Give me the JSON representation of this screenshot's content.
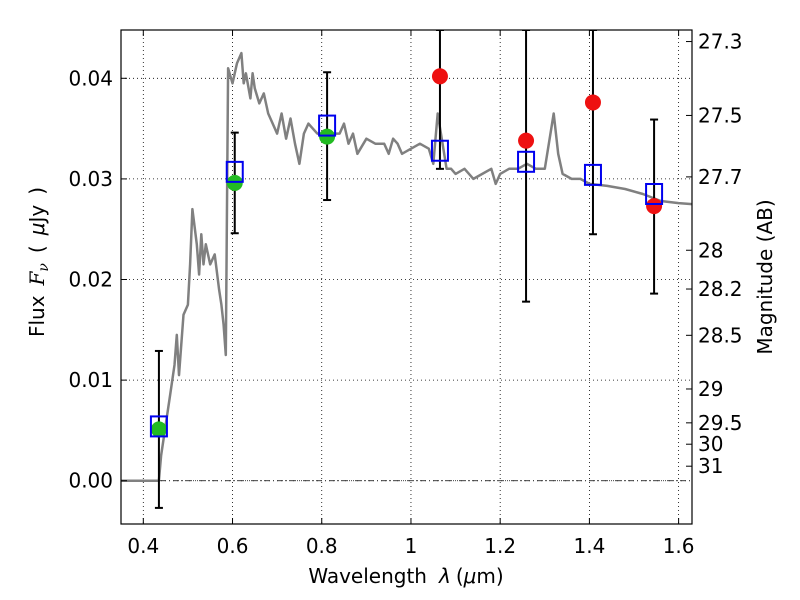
{
  "chart_data": {
    "type": "scatter",
    "xlabel_parts": [
      "Wavelength",
      "λ",
      "(",
      "μ",
      "m)"
    ],
    "ylabel_parts": [
      "Flux",
      "F",
      "ν",
      "(",
      "μ",
      "Jy",
      ")"
    ],
    "y2label": "Magnitude (AB)",
    "xlim": [
      0.35,
      1.63
    ],
    "ylim": [
      -0.0043,
      0.0448
    ],
    "x_ticks": [
      0.4,
      0.6,
      0.8,
      1.0,
      1.2,
      1.4,
      1.6
    ],
    "x_tick_labels": [
      "0.4",
      "0.6",
      "0.8",
      "1",
      "1.2",
      "1.4",
      "1.6"
    ],
    "y_ticks": [
      0.0,
      0.01,
      0.02,
      0.03,
      0.04
    ],
    "y_tick_labels": [
      "0.00",
      "0.01",
      "0.02",
      "0.03",
      "0.04"
    ],
    "y2_ticks": [
      27.3,
      27.5,
      27.7,
      28,
      28.2,
      28.5,
      29,
      29.5,
      30,
      31
    ],
    "y2_tick_labels": [
      "27.3",
      "27.5",
      "27.7",
      "28",
      "28.2",
      "28.5",
      "29",
      "29.5",
      "30",
      "31"
    ],
    "grid": true,
    "zero_line": true,
    "colors": {
      "model": "#808080",
      "green": "#22bb22",
      "red": "#ee1111",
      "box": "#0000ee",
      "errorbar": "#000000"
    },
    "series": [
      {
        "kind": "model_sed_line",
        "x": [
          0.35,
          0.425,
          0.435,
          0.44,
          0.45,
          0.46,
          0.47,
          0.475,
          0.48,
          0.49,
          0.5,
          0.505,
          0.51,
          0.52,
          0.525,
          0.53,
          0.535,
          0.54,
          0.55,
          0.56,
          0.57,
          0.575,
          0.58,
          0.585,
          0.59,
          0.6,
          0.61,
          0.62,
          0.625,
          0.63,
          0.64,
          0.645,
          0.65,
          0.66,
          0.67,
          0.68,
          0.69,
          0.7,
          0.71,
          0.72,
          0.73,
          0.74,
          0.75,
          0.76,
          0.77,
          0.78,
          0.79,
          0.8,
          0.82,
          0.84,
          0.85,
          0.86,
          0.87,
          0.88,
          0.9,
          0.92,
          0.94,
          0.95,
          0.96,
          0.97,
          0.98,
          1.0,
          1.02,
          1.04,
          1.05,
          1.06,
          1.08,
          1.09,
          1.1,
          1.12,
          1.14,
          1.16,
          1.18,
          1.19,
          1.2,
          1.22,
          1.24,
          1.26,
          1.28,
          1.3,
          1.32,
          1.33,
          1.34,
          1.36,
          1.38,
          1.4,
          1.44,
          1.48,
          1.52,
          1.56,
          1.6,
          1.63
        ],
        "y": [
          0.0,
          0.0,
          0.0,
          0.0025,
          0.0055,
          0.0085,
          0.0115,
          0.0145,
          0.0105,
          0.0165,
          0.0175,
          0.0215,
          0.027,
          0.0235,
          0.0205,
          0.0245,
          0.0215,
          0.0235,
          0.0215,
          0.0225,
          0.019,
          0.0175,
          0.0155,
          0.0125,
          0.041,
          0.0395,
          0.0415,
          0.0425,
          0.0395,
          0.0405,
          0.038,
          0.0405,
          0.039,
          0.0375,
          0.0385,
          0.0365,
          0.0355,
          0.0345,
          0.0365,
          0.034,
          0.036,
          0.0335,
          0.0315,
          0.0345,
          0.0355,
          0.035,
          0.0345,
          0.0345,
          0.0345,
          0.0345,
          0.0355,
          0.0335,
          0.0345,
          0.0325,
          0.034,
          0.0335,
          0.0335,
          0.0325,
          0.034,
          0.0335,
          0.0325,
          0.033,
          0.0335,
          0.033,
          0.0315,
          0.0365,
          0.031,
          0.031,
          0.0305,
          0.031,
          0.03,
          0.0305,
          0.031,
          0.0295,
          0.0305,
          0.031,
          0.031,
          0.0315,
          0.031,
          0.031,
          0.0365,
          0.0325,
          0.0305,
          0.03,
          0.03,
          0.0295,
          0.0293,
          0.029,
          0.0285,
          0.0278,
          0.0276,
          0.0275
        ]
      },
      {
        "kind": "green_points",
        "x": [
          0.435,
          0.605,
          0.812
        ],
        "y": [
          0.0051,
          0.0296,
          0.0342
        ]
      },
      {
        "kind": "red_points",
        "x": [
          1.065,
          1.258,
          1.408,
          1.545
        ],
        "y": [
          0.0402,
          0.0338,
          0.0376,
          0.0273
        ]
      },
      {
        "kind": "model_boxes",
        "x": [
          0.435,
          0.605,
          0.812,
          1.065,
          1.258,
          1.408,
          1.545
        ],
        "y": [
          0.0054,
          0.0307,
          0.0353,
          0.0328,
          0.0317,
          0.0304,
          0.0285
        ]
      },
      {
        "kind": "error_bars",
        "x": [
          0.435,
          0.605,
          0.812,
          1.065,
          1.258,
          1.408,
          1.545
        ],
        "y": [
          0.0051,
          0.0296,
          0.0342,
          0.0402,
          0.0338,
          0.0376,
          0.0273
        ],
        "ylow": [
          -0.0027,
          0.0246,
          0.0279,
          0.031,
          0.0178,
          0.0245,
          0.0186
        ],
        "yhigh": [
          0.0129,
          0.0346,
          0.0406,
          0.0448,
          0.0448,
          0.0448,
          0.0359
        ]
      }
    ]
  }
}
